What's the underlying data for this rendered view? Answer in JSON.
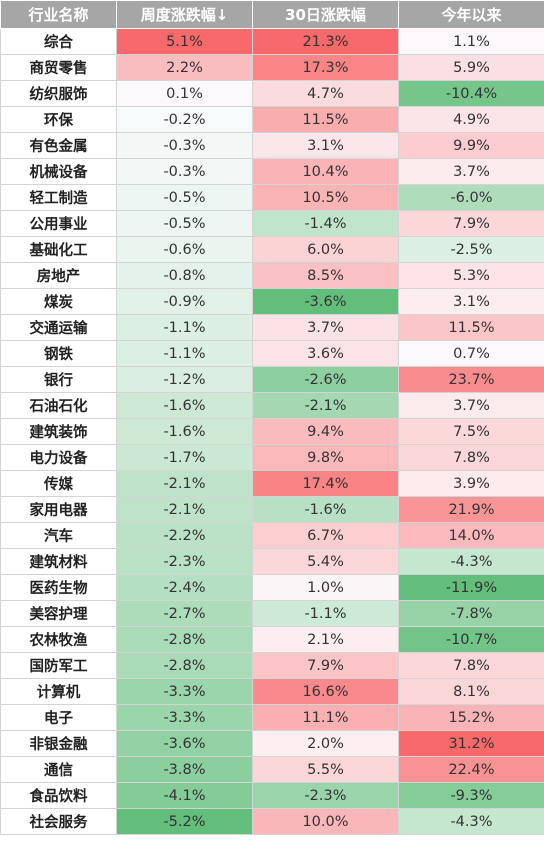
{
  "chart_data": {
    "type": "table",
    "columns": [
      "行业名称",
      "周度涨跌幅↓",
      "30日涨跌幅",
      "今年以来"
    ],
    "rows": [
      {
        "name": "综合",
        "week": "5.1%",
        "d30": "21.3%",
        "ytd": "1.1%"
      },
      {
        "name": "商贸零售",
        "week": "2.2%",
        "d30": "17.3%",
        "ytd": "5.9%"
      },
      {
        "name": "纺织服饰",
        "week": "0.1%",
        "d30": "4.7%",
        "ytd": "-10.4%"
      },
      {
        "name": "环保",
        "week": "-0.2%",
        "d30": "11.5%",
        "ytd": "4.9%"
      },
      {
        "name": "有色金属",
        "week": "-0.3%",
        "d30": "3.1%",
        "ytd": "9.9%"
      },
      {
        "name": "机械设备",
        "week": "-0.3%",
        "d30": "10.4%",
        "ytd": "3.7%"
      },
      {
        "name": "轻工制造",
        "week": "-0.5%",
        "d30": "10.5%",
        "ytd": "-6.0%"
      },
      {
        "name": "公用事业",
        "week": "-0.5%",
        "d30": "-1.4%",
        "ytd": "7.9%"
      },
      {
        "name": "基础化工",
        "week": "-0.6%",
        "d30": "6.0%",
        "ytd": "-2.5%"
      },
      {
        "name": "房地产",
        "week": "-0.8%",
        "d30": "8.5%",
        "ytd": "5.3%"
      },
      {
        "name": "煤炭",
        "week": "-0.9%",
        "d30": "-3.6%",
        "ytd": "3.1%"
      },
      {
        "name": "交通运输",
        "week": "-1.1%",
        "d30": "3.7%",
        "ytd": "11.5%"
      },
      {
        "name": "钢铁",
        "week": "-1.1%",
        "d30": "3.6%",
        "ytd": "0.7%"
      },
      {
        "name": "银行",
        "week": "-1.2%",
        "d30": "-2.6%",
        "ytd": "23.7%"
      },
      {
        "name": "石油石化",
        "week": "-1.6%",
        "d30": "-2.1%",
        "ytd": "3.7%"
      },
      {
        "name": "建筑装饰",
        "week": "-1.6%",
        "d30": "9.4%",
        "ytd": "7.5%"
      },
      {
        "name": "电力设备",
        "week": "-1.7%",
        "d30": "9.8%",
        "ytd": "7.8%"
      },
      {
        "name": "传媒",
        "week": "-2.1%",
        "d30": "17.4%",
        "ytd": "3.9%"
      },
      {
        "name": "家用电器",
        "week": "-2.1%",
        "d30": "-1.6%",
        "ytd": "21.9%"
      },
      {
        "name": "汽车",
        "week": "-2.2%",
        "d30": "6.7%",
        "ytd": "14.0%"
      },
      {
        "name": "建筑材料",
        "week": "-2.3%",
        "d30": "5.4%",
        "ytd": "-4.3%"
      },
      {
        "name": "医药生物",
        "week": "-2.4%",
        "d30": "1.0%",
        "ytd": "-11.9%"
      },
      {
        "name": "美容护理",
        "week": "-2.7%",
        "d30": "-1.1%",
        "ytd": "-7.8%"
      },
      {
        "name": "农林牧渔",
        "week": "-2.8%",
        "d30": "2.1%",
        "ytd": "-10.7%"
      },
      {
        "name": "国防军工",
        "week": "-2.8%",
        "d30": "7.9%",
        "ytd": "7.8%"
      },
      {
        "name": "计算机",
        "week": "-3.3%",
        "d30": "16.6%",
        "ytd": "8.1%"
      },
      {
        "name": "电子",
        "week": "-3.3%",
        "d30": "11.1%",
        "ytd": "15.2%"
      },
      {
        "name": "非银金融",
        "week": "-3.6%",
        "d30": "2.0%",
        "ytd": "31.2%"
      },
      {
        "name": "通信",
        "week": "-3.8%",
        "d30": "5.5%",
        "ytd": "22.4%"
      },
      {
        "name": "食品饮料",
        "week": "-4.1%",
        "d30": "-2.3%",
        "ytd": "-9.3%"
      },
      {
        "name": "社会服务",
        "week": "-5.2%",
        "d30": "10.0%",
        "ytd": "-4.3%"
      }
    ]
  },
  "colors": {
    "header_bg": "#a6a6a6",
    "positive": "#f8696b",
    "negative": "#63be7b",
    "neutral": "#fcfcff"
  }
}
